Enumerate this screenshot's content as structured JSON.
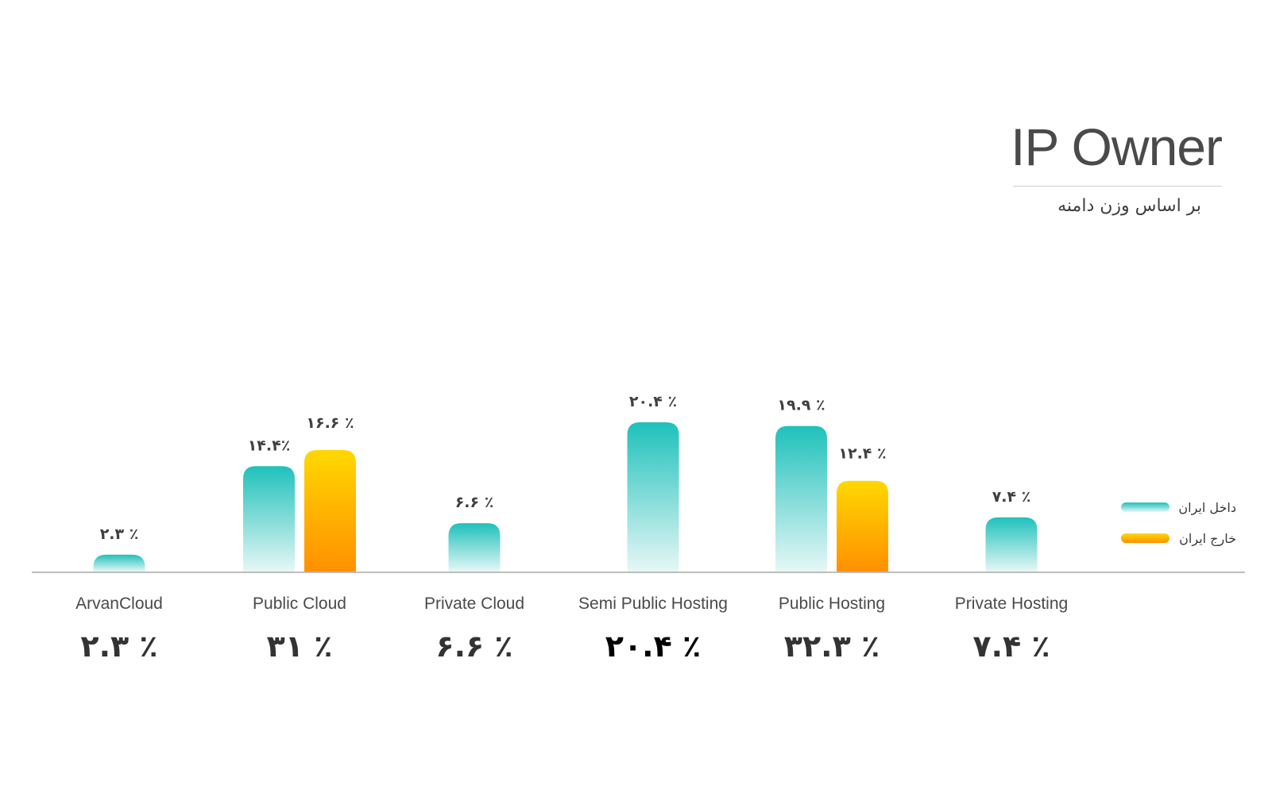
{
  "chart_data": {
    "type": "bar",
    "title": "IP Owner",
    "subtitle": "بر اساس وزن دامنه",
    "categories": [
      "ArvanCloud",
      "Public Cloud",
      "Private Cloud",
      "Semi Public Hosting",
      "Public Hosting",
      "Private Hosting"
    ],
    "series": [
      {
        "name": "داخل ایران",
        "color_top": "#1fc1bb",
        "color_bottom": "#e6f7f6",
        "values": [
          2.3,
          14.4,
          6.6,
          20.4,
          19.9,
          7.4
        ],
        "labels": [
          "۲.۳ ٪",
          "۱۴.۴٪",
          "۶.۶ ٪",
          "۲۰.۴ ٪",
          "۱۹.۹ ٪",
          "۷.۴ ٪"
        ]
      },
      {
        "name": "خارج ایران",
        "color_top": "#ffd800",
        "color_bottom": "#ff9000",
        "values": [
          null,
          16.6,
          null,
          null,
          12.4,
          null
        ],
        "labels": [
          "",
          "۱۶.۶ ٪",
          "",
          "",
          "۱۲.۴ ٪",
          ""
        ]
      }
    ],
    "totals": [
      2.3,
      31,
      6.6,
      20.4,
      32.3,
      7.4
    ],
    "total_labels": [
      "۲.۳ ٪",
      "۳۱ ٪",
      "۶.۶ ٪",
      "۲۰.۴ ٪",
      "۳۲.۳ ٪",
      "۷.۴ ٪"
    ],
    "highlight_category": "Semi Public Hosting",
    "legend_position": "right",
    "ylim": [
      0,
      20.4
    ],
    "grid": false
  }
}
